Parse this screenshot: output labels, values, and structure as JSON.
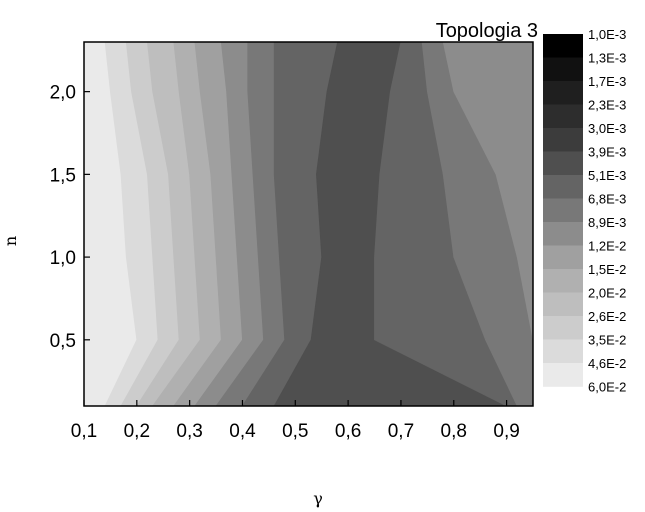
{
  "chart_data": {
    "type": "contour",
    "title": "Topologia 3",
    "xlabel": "γ",
    "ylabel": "n",
    "xlim": [
      0.1,
      0.95
    ],
    "ylim": [
      0.1,
      2.3
    ],
    "x_ticks": [
      {
        "value": 0.1,
        "label": "0,1"
      },
      {
        "value": 0.2,
        "label": "0,2"
      },
      {
        "value": 0.3,
        "label": "0,3"
      },
      {
        "value": 0.4,
        "label": "0,4"
      },
      {
        "value": 0.5,
        "label": "0,5"
      },
      {
        "value": 0.6,
        "label": "0,6"
      },
      {
        "value": 0.7,
        "label": "0,7"
      },
      {
        "value": 0.8,
        "label": "0,8"
      },
      {
        "value": 0.9,
        "label": "0,9"
      }
    ],
    "y_ticks": [
      {
        "value": 0.5,
        "label": "0,5"
      },
      {
        "value": 1.0,
        "label": "1,0"
      },
      {
        "value": 1.5,
        "label": "1,5"
      },
      {
        "value": 2.0,
        "label": "2,0"
      }
    ],
    "colorbar_levels": [
      "1,0E-3",
      "1,3E-3",
      "1,7E-3",
      "2,3E-3",
      "3,0E-3",
      "3,9E-3",
      "5,1E-3",
      "6,8E-3",
      "8,9E-3",
      "1,2E-2",
      "1,5E-2",
      "2,0E-2",
      "2,6E-2",
      "3,5E-2",
      "4,6E-2",
      "6,0E-2"
    ],
    "colorbar_colors": [
      "#000000",
      "#111111",
      "#1f1f1f",
      "#2d2d2d",
      "#3c3c3c",
      "#4f4f4f",
      "#646464",
      "#787878",
      "#8c8c8c",
      "#a0a0a0",
      "#b0b0b0",
      "#bebebe",
      "#cccccc",
      "#dbdbdb",
      "#eaeaea"
    ],
    "band_colors": [
      "#eaeaea",
      "#dbdbdb",
      "#cccccc",
      "#bebebe",
      "#b0b0b0",
      "#a0a0a0",
      "#8c8c8c",
      "#787878",
      "#646464",
      "#4f4f4f",
      "#646464",
      "#787878",
      "#8c8c8c"
    ],
    "band_boundaries_at_n": [
      {
        "n": 0.1,
        "gamma": [
          0.14,
          0.17,
          0.2,
          0.23,
          0.27,
          0.31,
          0.35,
          0.4,
          0.46,
          0.9,
          0.92,
          0.95
        ]
      },
      {
        "n": 0.5,
        "gamma": [
          0.2,
          0.24,
          0.28,
          0.32,
          0.36,
          0.4,
          0.44,
          0.48,
          0.53,
          0.65,
          0.86,
          0.95
        ]
      },
      {
        "n": 1.0,
        "gamma": [
          0.18,
          0.23,
          0.27,
          0.31,
          0.35,
          0.39,
          0.43,
          0.47,
          0.55,
          0.65,
          0.8,
          0.92
        ]
      },
      {
        "n": 1.5,
        "gamma": [
          0.17,
          0.22,
          0.26,
          0.3,
          0.34,
          0.38,
          0.42,
          0.46,
          0.54,
          0.66,
          0.78,
          0.88
        ]
      },
      {
        "n": 2.0,
        "gamma": [
          0.15,
          0.19,
          0.23,
          0.28,
          0.32,
          0.37,
          0.41,
          0.46,
          0.56,
          0.68,
          0.75,
          0.8
        ]
      },
      {
        "n": 2.3,
        "gamma": [
          0.14,
          0.18,
          0.22,
          0.27,
          0.31,
          0.36,
          0.41,
          0.46,
          0.58,
          0.7,
          0.74,
          0.78
        ]
      }
    ]
  }
}
